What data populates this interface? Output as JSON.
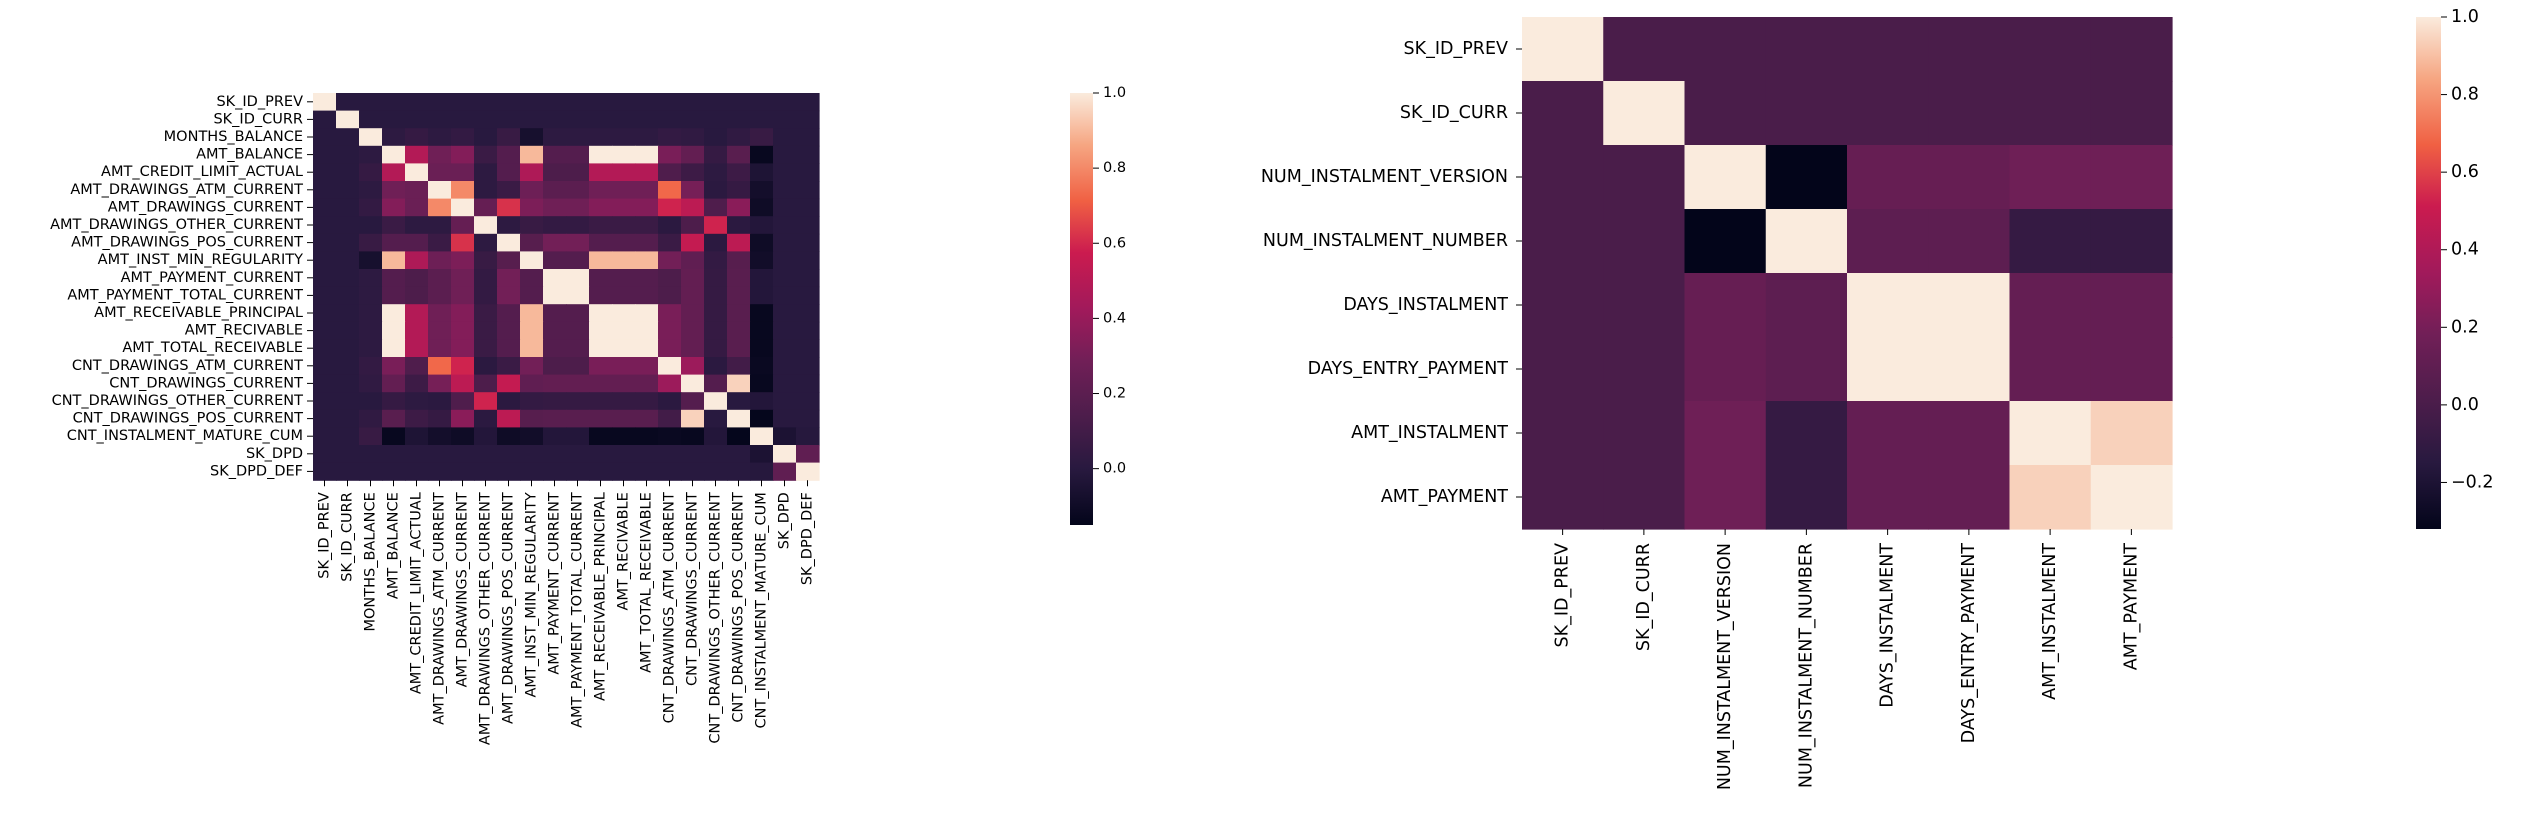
{
  "chart_data": [
    {
      "type": "heatmap",
      "title": "",
      "xlabel": "",
      "ylabel": "",
      "labels": [
        "SK_ID_PREV",
        "SK_ID_CURR",
        "MONTHS_BALANCE",
        "AMT_BALANCE",
        "AMT_CREDIT_LIMIT_ACTUAL",
        "AMT_DRAWINGS_ATM_CURRENT",
        "AMT_DRAWINGS_CURRENT",
        "AMT_DRAWINGS_OTHER_CURRENT",
        "AMT_DRAWINGS_POS_CURRENT",
        "AMT_INST_MIN_REGULARITY",
        "AMT_PAYMENT_CURRENT",
        "AMT_PAYMENT_TOTAL_CURRENT",
        "AMT_RECEIVABLE_PRINCIPAL",
        "AMT_RECIVABLE",
        "AMT_TOTAL_RECEIVABLE",
        "CNT_DRAWINGS_ATM_CURRENT",
        "CNT_DRAWINGS_CURRENT",
        "CNT_DRAWINGS_OTHER_CURRENT",
        "CNT_DRAWINGS_POS_CURRENT",
        "CNT_INSTALMENT_MATURE_CUM",
        "SK_DPD",
        "SK_DPD_DEF"
      ],
      "values": [
        [
          1.0,
          0.0,
          0.0,
          0.0,
          0.0,
          0.0,
          0.0,
          0.0,
          0.0,
          0.0,
          0.0,
          0.0,
          0.0,
          0.0,
          0.0,
          0.0,
          0.0,
          0.0,
          0.0,
          0.0,
          0.0,
          0.0
        ],
        [
          0.0,
          1.0,
          0.0,
          0.0,
          0.0,
          0.0,
          0.0,
          0.0,
          0.0,
          0.0,
          0.0,
          0.0,
          0.0,
          0.0,
          0.0,
          0.0,
          0.0,
          0.0,
          0.0,
          0.0,
          0.0,
          0.0
        ],
        [
          0.0,
          0.0,
          1.0,
          0.02,
          0.05,
          0.02,
          0.04,
          0.0,
          0.06,
          -0.07,
          0.02,
          0.02,
          0.02,
          0.02,
          0.02,
          0.04,
          0.03,
          0.0,
          0.03,
          0.06,
          0.0,
          0.0
        ],
        [
          0.0,
          0.0,
          0.02,
          1.0,
          0.49,
          0.28,
          0.34,
          0.07,
          0.17,
          0.9,
          0.17,
          0.17,
          1.0,
          1.0,
          1.0,
          0.31,
          0.23,
          0.05,
          0.19,
          -0.13,
          0.0,
          0.0
        ],
        [
          0.0,
          0.0,
          0.05,
          0.49,
          1.0,
          0.26,
          0.26,
          0.02,
          0.17,
          0.47,
          0.14,
          0.14,
          0.49,
          0.49,
          0.49,
          0.15,
          0.08,
          0.02,
          0.08,
          -0.04,
          0.0,
          0.0
        ],
        [
          0.0,
          0.0,
          0.02,
          0.28,
          0.26,
          1.0,
          0.8,
          0.02,
          0.07,
          0.27,
          0.2,
          0.2,
          0.28,
          0.28,
          0.28,
          0.73,
          0.3,
          0.01,
          0.05,
          -0.08,
          0.0,
          0.0
        ],
        [
          0.0,
          0.0,
          0.04,
          0.34,
          0.26,
          0.8,
          1.0,
          0.24,
          0.62,
          0.32,
          0.28,
          0.28,
          0.34,
          0.34,
          0.34,
          0.59,
          0.52,
          0.15,
          0.36,
          -0.1,
          0.0,
          0.0
        ],
        [
          0.0,
          0.0,
          0.0,
          0.07,
          0.02,
          0.02,
          0.24,
          1.0,
          0.02,
          0.06,
          0.04,
          0.04,
          0.07,
          0.07,
          0.07,
          0.01,
          0.14,
          0.59,
          0.01,
          -0.02,
          0.0,
          0.0
        ],
        [
          0.0,
          0.0,
          0.06,
          0.17,
          0.17,
          0.07,
          0.62,
          0.02,
          1.0,
          0.18,
          0.29,
          0.29,
          0.17,
          0.17,
          0.17,
          0.07,
          0.55,
          0.01,
          0.52,
          -0.1,
          0.0,
          0.0
        ],
        [
          0.0,
          0.0,
          -0.07,
          0.9,
          0.47,
          0.27,
          0.32,
          0.06,
          0.18,
          1.0,
          0.17,
          0.17,
          0.9,
          0.9,
          0.9,
          0.29,
          0.22,
          0.04,
          0.18,
          -0.09,
          0.0,
          0.0
        ],
        [
          0.0,
          0.0,
          0.02,
          0.17,
          0.14,
          0.2,
          0.28,
          0.04,
          0.29,
          0.17,
          1.0,
          1.0,
          0.17,
          0.17,
          0.17,
          0.14,
          0.23,
          0.05,
          0.19,
          -0.02,
          0.0,
          0.0
        ],
        [
          0.0,
          0.0,
          0.02,
          0.17,
          0.14,
          0.2,
          0.28,
          0.04,
          0.29,
          0.17,
          1.0,
          1.0,
          0.17,
          0.17,
          0.17,
          0.14,
          0.23,
          0.05,
          0.19,
          -0.02,
          0.0,
          0.0
        ],
        [
          0.0,
          0.0,
          0.02,
          1.0,
          0.49,
          0.28,
          0.34,
          0.07,
          0.17,
          0.9,
          0.17,
          0.17,
          1.0,
          1.0,
          1.0,
          0.31,
          0.23,
          0.05,
          0.19,
          -0.13,
          0.0,
          0.0
        ],
        [
          0.0,
          0.0,
          0.02,
          1.0,
          0.49,
          0.28,
          0.34,
          0.07,
          0.17,
          0.9,
          0.17,
          0.17,
          1.0,
          1.0,
          1.0,
          0.31,
          0.23,
          0.05,
          0.19,
          -0.13,
          0.0,
          0.0
        ],
        [
          0.0,
          0.0,
          0.02,
          1.0,
          0.49,
          0.28,
          0.34,
          0.07,
          0.17,
          0.9,
          0.17,
          0.17,
          1.0,
          1.0,
          1.0,
          0.31,
          0.23,
          0.05,
          0.19,
          -0.13,
          0.0,
          0.0
        ],
        [
          0.0,
          0.0,
          0.04,
          0.31,
          0.15,
          0.73,
          0.59,
          0.01,
          0.07,
          0.29,
          0.14,
          0.14,
          0.31,
          0.31,
          0.31,
          1.0,
          0.41,
          0.01,
          0.1,
          -0.12,
          0.0,
          0.0
        ],
        [
          0.0,
          0.0,
          0.03,
          0.23,
          0.08,
          0.3,
          0.52,
          0.14,
          0.55,
          0.22,
          0.23,
          0.23,
          0.23,
          0.23,
          0.23,
          0.41,
          1.0,
          0.17,
          0.95,
          -0.13,
          0.0,
          0.0
        ],
        [
          0.0,
          0.0,
          0.0,
          0.05,
          0.02,
          0.01,
          0.15,
          0.59,
          0.01,
          0.04,
          0.05,
          0.05,
          0.05,
          0.05,
          0.05,
          0.01,
          0.17,
          1.0,
          0.0,
          -0.02,
          0.0,
          0.0
        ],
        [
          0.0,
          0.0,
          0.03,
          0.19,
          0.08,
          0.05,
          0.36,
          0.01,
          0.52,
          0.18,
          0.19,
          0.19,
          0.19,
          0.19,
          0.19,
          0.1,
          0.95,
          0.0,
          1.0,
          -0.14,
          0.0,
          0.0
        ],
        [
          0.0,
          0.0,
          0.06,
          -0.13,
          -0.04,
          -0.08,
          -0.1,
          -0.02,
          -0.1,
          -0.09,
          -0.02,
          -0.02,
          -0.13,
          -0.13,
          -0.13,
          -0.12,
          -0.13,
          -0.02,
          -0.14,
          1.0,
          -0.05,
          -0.01
        ],
        [
          0.0,
          0.0,
          0.0,
          0.0,
          0.0,
          0.0,
          0.0,
          0.0,
          0.0,
          0.0,
          0.0,
          0.0,
          0.0,
          0.0,
          0.0,
          0.0,
          0.0,
          0.0,
          0.0,
          -0.05,
          1.0,
          0.22
        ],
        [
          0.0,
          0.0,
          0.0,
          0.0,
          0.0,
          0.0,
          0.0,
          0.0,
          0.0,
          0.0,
          0.0,
          0.0,
          0.0,
          0.0,
          0.0,
          0.0,
          0.0,
          0.0,
          0.0,
          -0.01,
          0.22,
          1.0
        ]
      ],
      "colorbar": {
        "vmin": -0.15,
        "vmax": 1.0,
        "ticks": [
          "1.0",
          "0.8",
          "0.6",
          "0.4",
          "0.2",
          "0.0"
        ],
        "tick_values": [
          1.0,
          0.8,
          0.6,
          0.4,
          0.2,
          0.0
        ]
      }
    },
    {
      "type": "heatmap",
      "title": "",
      "xlabel": "",
      "ylabel": "",
      "labels": [
        "SK_ID_PREV",
        "SK_ID_CURR",
        "NUM_INSTALMENT_VERSION",
        "NUM_INSTALMENT_NUMBER",
        "DAYS_INSTALMENT",
        "DAYS_ENTRY_PAYMENT",
        "AMT_INSTALMENT",
        "AMT_PAYMENT"
      ],
      "values": [
        [
          1.0,
          0.0,
          0.0,
          0.0,
          0.0,
          0.0,
          0.0,
          0.0
        ],
        [
          0.0,
          1.0,
          0.0,
          0.0,
          0.0,
          0.0,
          0.0,
          0.0
        ],
        [
          0.0,
          0.0,
          1.0,
          -0.32,
          0.13,
          0.13,
          0.17,
          0.17
        ],
        [
          0.0,
          0.0,
          -0.32,
          1.0,
          0.09,
          0.09,
          -0.09,
          -0.09
        ],
        [
          0.0,
          0.0,
          0.13,
          0.09,
          1.0,
          1.0,
          0.12,
          0.12
        ],
        [
          0.0,
          0.0,
          0.13,
          0.09,
          1.0,
          1.0,
          0.12,
          0.12
        ],
        [
          0.0,
          0.0,
          0.17,
          -0.09,
          0.12,
          0.12,
          1.0,
          0.94
        ],
        [
          0.0,
          0.0,
          0.17,
          -0.09,
          0.12,
          0.12,
          0.94,
          1.0
        ]
      ],
      "colorbar": {
        "vmin": -0.32,
        "vmax": 1.0,
        "ticks": [
          "1.0",
          "0.8",
          "0.6",
          "0.4",
          "0.2",
          "0.0",
          "−0.2"
        ],
        "tick_values": [
          1.0,
          0.8,
          0.6,
          0.4,
          0.2,
          0.0,
          -0.2
        ]
      }
    }
  ]
}
